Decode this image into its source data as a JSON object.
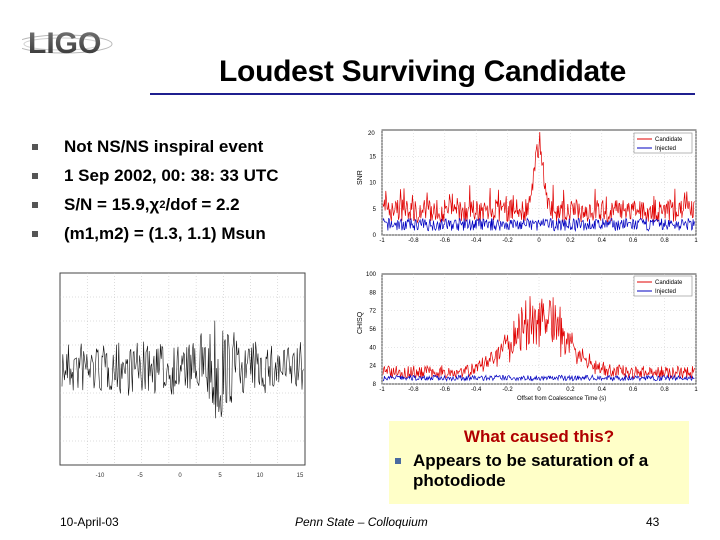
{
  "logo_text": "LIGO",
  "title": "Loudest Surviving Candidate",
  "bullets": [
    "Not NS/NS inspiral event",
    "1 Sep 2002, 00: 38: 33 UTC",
    "(m1,m2) = (1.3, 1.1) Msun"
  ],
  "snr_line": {
    "prefix": "S/N = 15.9, ",
    "chi": "χ",
    "sup": "2",
    "suffix": "/dof = 2.2"
  },
  "callout": {
    "title": "What caused this?",
    "body": "Appears to be saturation of a photodiode"
  },
  "footer": {
    "date": "10-April-03",
    "venue": "Penn State – Colloquium",
    "page": "43"
  },
  "colors": {
    "title_rule": "#1f1f8f",
    "callout_bg": "#ffffc8",
    "callout_title": "#b00000",
    "candidate": "#e00000",
    "injected": "#0000c0"
  },
  "plots": {
    "strain": {
      "type": "time-series",
      "xticks": [
        "-10",
        "-5",
        "0",
        "5",
        "10",
        "15"
      ]
    },
    "snr": {
      "type": "line",
      "ylabel": "SNR",
      "ytick_top": "20",
      "yticks": [
        "15",
        "10",
        "5",
        "0"
      ],
      "xticks": [
        "-1",
        "-0.8",
        "-0.6",
        "-0.4",
        "-0.2",
        "0",
        "0.2",
        "0.4",
        "0.6",
        "0.8",
        "1"
      ],
      "legend": [
        "Candidate",
        "Injected"
      ]
    },
    "chisq": {
      "type": "line",
      "ylabel": "CHISQ",
      "ytick_top": "100",
      "yticks": [
        "88",
        "72",
        "56",
        "40",
        "24",
        "8"
      ],
      "xticks": [
        "-1",
        "-0.8",
        "-0.6",
        "-0.4",
        "-0.2",
        "0",
        "0.2",
        "0.4",
        "0.6",
        "0.8",
        "1"
      ],
      "xlabel": "Offset from Coalescence Time (s)",
      "legend": [
        "Candidate",
        "Injected"
      ]
    }
  }
}
